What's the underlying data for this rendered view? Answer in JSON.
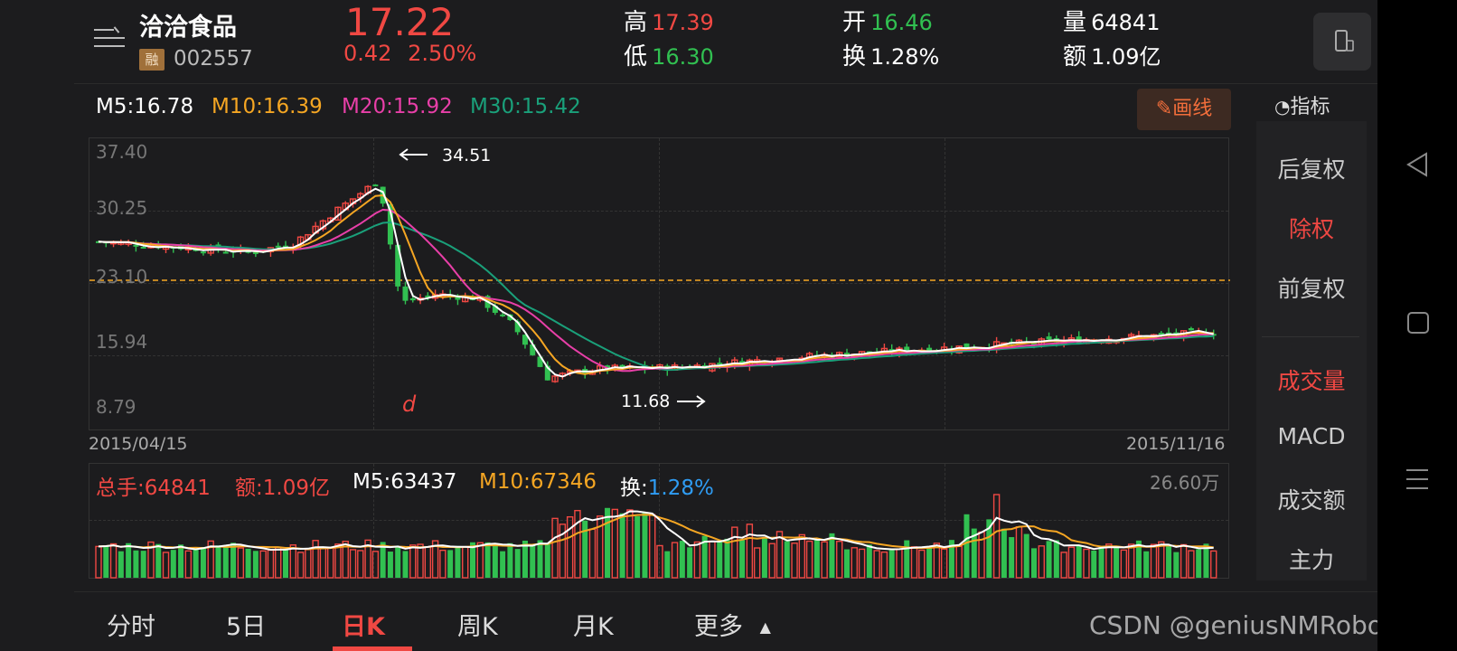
{
  "header": {
    "stock_name": "洽洽食品",
    "margin_badge": "融",
    "stock_code": "002557",
    "price": "17.22",
    "change": "0.42",
    "change_pct": "2.50%",
    "stats": {
      "high_label": "高",
      "high_value": "17.39",
      "low_label": "低",
      "low_value": "16.30",
      "open_label": "开",
      "open_value": "16.46",
      "turnover_label": "换",
      "turnover_value": "1.28%",
      "volume_label": "量",
      "volume_value": "64841",
      "amount_label": "额",
      "amount_value": "1.09亿"
    }
  },
  "ma_legend": {
    "m5": "M5:16.78",
    "m10": "M10:16.39",
    "m20": "M20:15.92",
    "m30": "M30:15.42"
  },
  "draw_button_label": "画线",
  "indicator_label": "指标",
  "chart": {
    "y_labels": [
      "37.40",
      "30.25",
      "23.10",
      "15.94",
      "8.79"
    ],
    "start_date": "2015/04/15",
    "end_date": "2015/11/16",
    "high_annotation": "34.51",
    "low_annotation": "11.68",
    "event_mark": "d"
  },
  "volume": {
    "total_label": "总手:64841",
    "amount_label": "额:1.09亿",
    "m5_label": "M5:63437",
    "m10_label": "M10:67346",
    "turnover_prefix": "换:",
    "turnover_value": "1.28%",
    "max_label": "26.60万"
  },
  "side_panel": {
    "items": [
      "后复权",
      "除权",
      "前复权",
      "成交量",
      "MACD",
      "成交额",
      "主力"
    ]
  },
  "tabs": [
    "分时",
    "5日",
    "日K",
    "周K",
    "月K",
    "更多"
  ],
  "watermark": "CSDN @geniusNMRobot专家",
  "colors": {
    "up": "#f04843",
    "down": "#31c051",
    "ma5": "#ffffff",
    "ma10": "#f5a623",
    "ma20": "#e83fa8",
    "ma30": "#1aa07a"
  }
}
